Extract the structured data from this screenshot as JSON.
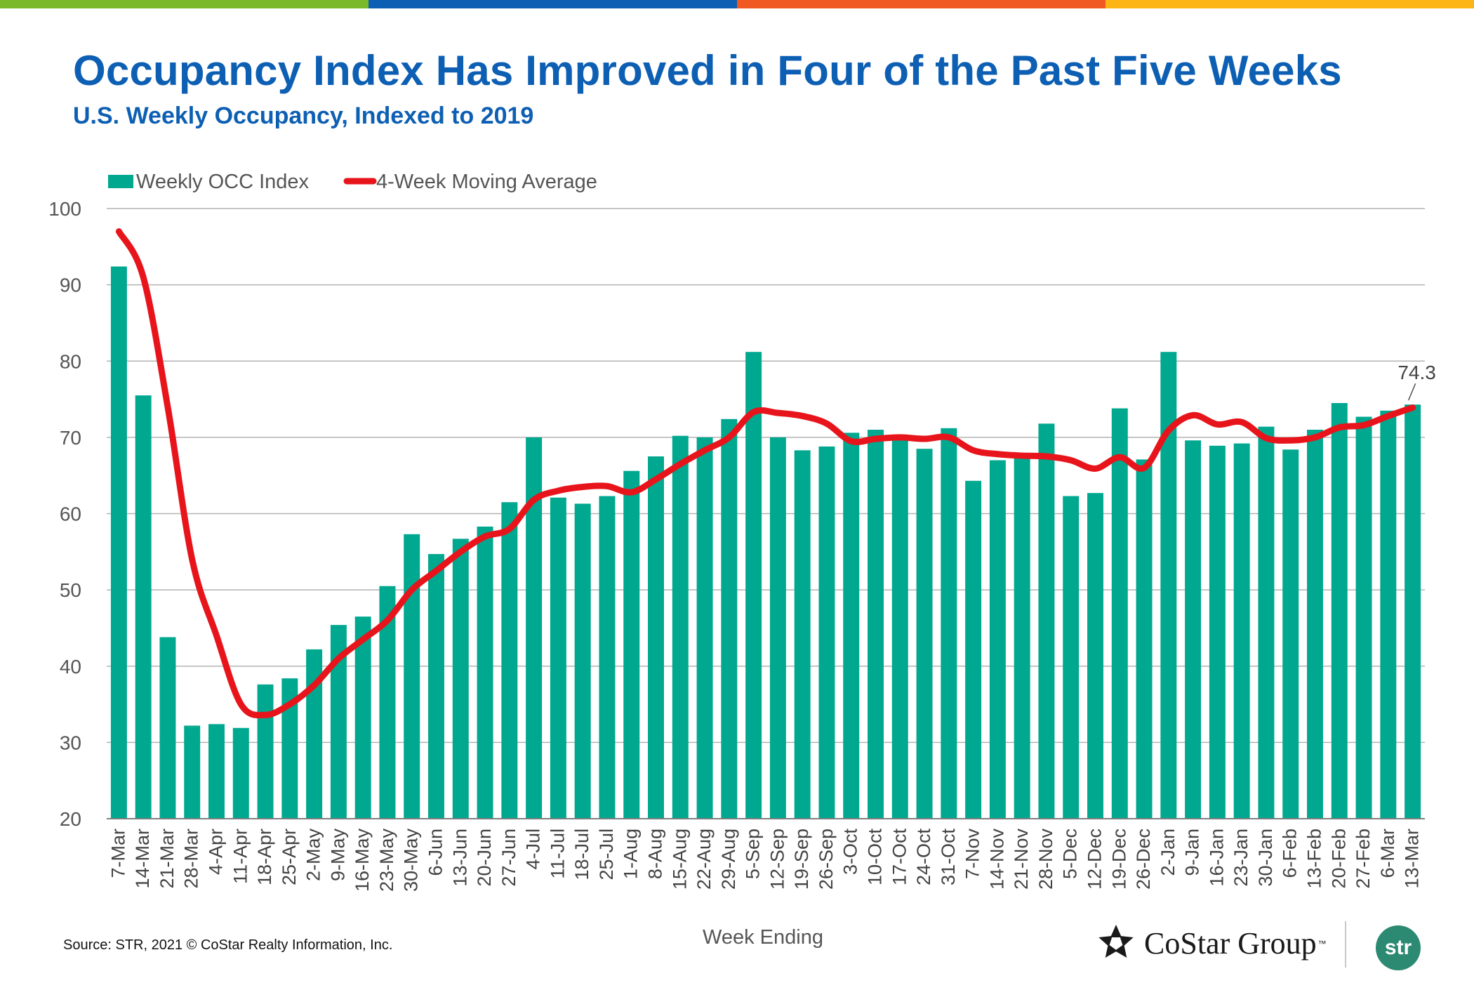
{
  "header": {
    "title": "Occupancy Index Has Improved in Four of the Past Five Weeks",
    "subtitle": "U.S. Weekly Occupancy, Indexed to 2019"
  },
  "top_bar_colors": [
    "#7ab929",
    "#0d5fb3",
    "#f05a22",
    "#fdb515"
  ],
  "footer": {
    "source": "Source: STR, 2021 © CoStar Realty Information, Inc.",
    "costar_logo_text": "CoStar Group",
    "costar_tm": "™",
    "str_logo_text": "str"
  },
  "chart_data": {
    "type": "bar",
    "title": "",
    "xlabel": "Week Ending",
    "ylabel": "",
    "ylim": [
      20,
      100
    ],
    "yticks": [
      20,
      30,
      40,
      50,
      60,
      70,
      80,
      90,
      100
    ],
    "grid": true,
    "legend_position": "top-left",
    "colors": {
      "bar": "#00a88f",
      "line": "#e8141b"
    },
    "categories": [
      "7-Mar",
      "14-Mar",
      "21-Mar",
      "28-Mar",
      "4-Apr",
      "11-Apr",
      "18-Apr",
      "25-Apr",
      "2-May",
      "9-May",
      "16-May",
      "23-May",
      "30-May",
      "6-Jun",
      "13-Jun",
      "20-Jun",
      "27-Jun",
      "4-Jul",
      "11-Jul",
      "18-Jul",
      "25-Jul",
      "1-Aug",
      "8-Aug",
      "15-Aug",
      "22-Aug",
      "29-Aug",
      "5-Sep",
      "12-Sep",
      "19-Sep",
      "26-Sep",
      "3-Oct",
      "10-Oct",
      "17-Oct",
      "24-Oct",
      "31-Oct",
      "7-Nov",
      "14-Nov",
      "21-Nov",
      "28-Nov",
      "5-Dec",
      "12-Dec",
      "19-Dec",
      "26-Dec",
      "2-Jan",
      "9-Jan",
      "16-Jan",
      "23-Jan",
      "30-Jan",
      "6-Feb",
      "13-Feb",
      "20-Feb",
      "27-Feb",
      "6-Mar",
      "13-Mar"
    ],
    "series": [
      {
        "name": "Weekly OCC Index",
        "type": "bar",
        "values": [
          92.4,
          75.5,
          43.8,
          32.2,
          32.4,
          31.9,
          37.6,
          38.4,
          42.2,
          45.4,
          46.5,
          50.5,
          57.3,
          54.7,
          56.7,
          58.3,
          61.5,
          70.0,
          62.1,
          61.3,
          62.3,
          65.6,
          67.5,
          70.2,
          70.0,
          72.4,
          81.2,
          70.0,
          68.3,
          68.8,
          70.6,
          71.0,
          70.1,
          68.5,
          71.2,
          64.3,
          67.0,
          67.4,
          71.8,
          62.3,
          62.7,
          73.8,
          67.1,
          81.2,
          69.6,
          68.9,
          69.2,
          71.4,
          68.4,
          71.0,
          74.5,
          72.7,
          73.5,
          74.3
        ]
      },
      {
        "name": "4-Week Moving Average",
        "type": "line",
        "values": [
          97.0,
          91.0,
          74.0,
          54.0,
          44.0,
          35.0,
          33.6,
          35.0,
          37.5,
          41.0,
          43.5,
          46.0,
          50.0,
          52.5,
          55.0,
          57.0,
          58.0,
          61.8,
          63.0,
          63.5,
          63.6,
          62.8,
          64.5,
          66.5,
          68.3,
          70.0,
          73.3,
          73.2,
          72.8,
          71.8,
          69.5,
          69.8,
          70.0,
          69.8,
          70.0,
          68.3,
          67.8,
          67.6,
          67.5,
          67.0,
          65.9,
          67.4,
          66.0,
          70.9,
          72.9,
          71.7,
          72.0,
          69.9,
          69.6,
          70.0,
          71.3,
          71.6,
          72.8,
          73.9
        ]
      }
    ],
    "annotations": [
      {
        "category": "13-Mar",
        "text": "74.3"
      }
    ]
  }
}
